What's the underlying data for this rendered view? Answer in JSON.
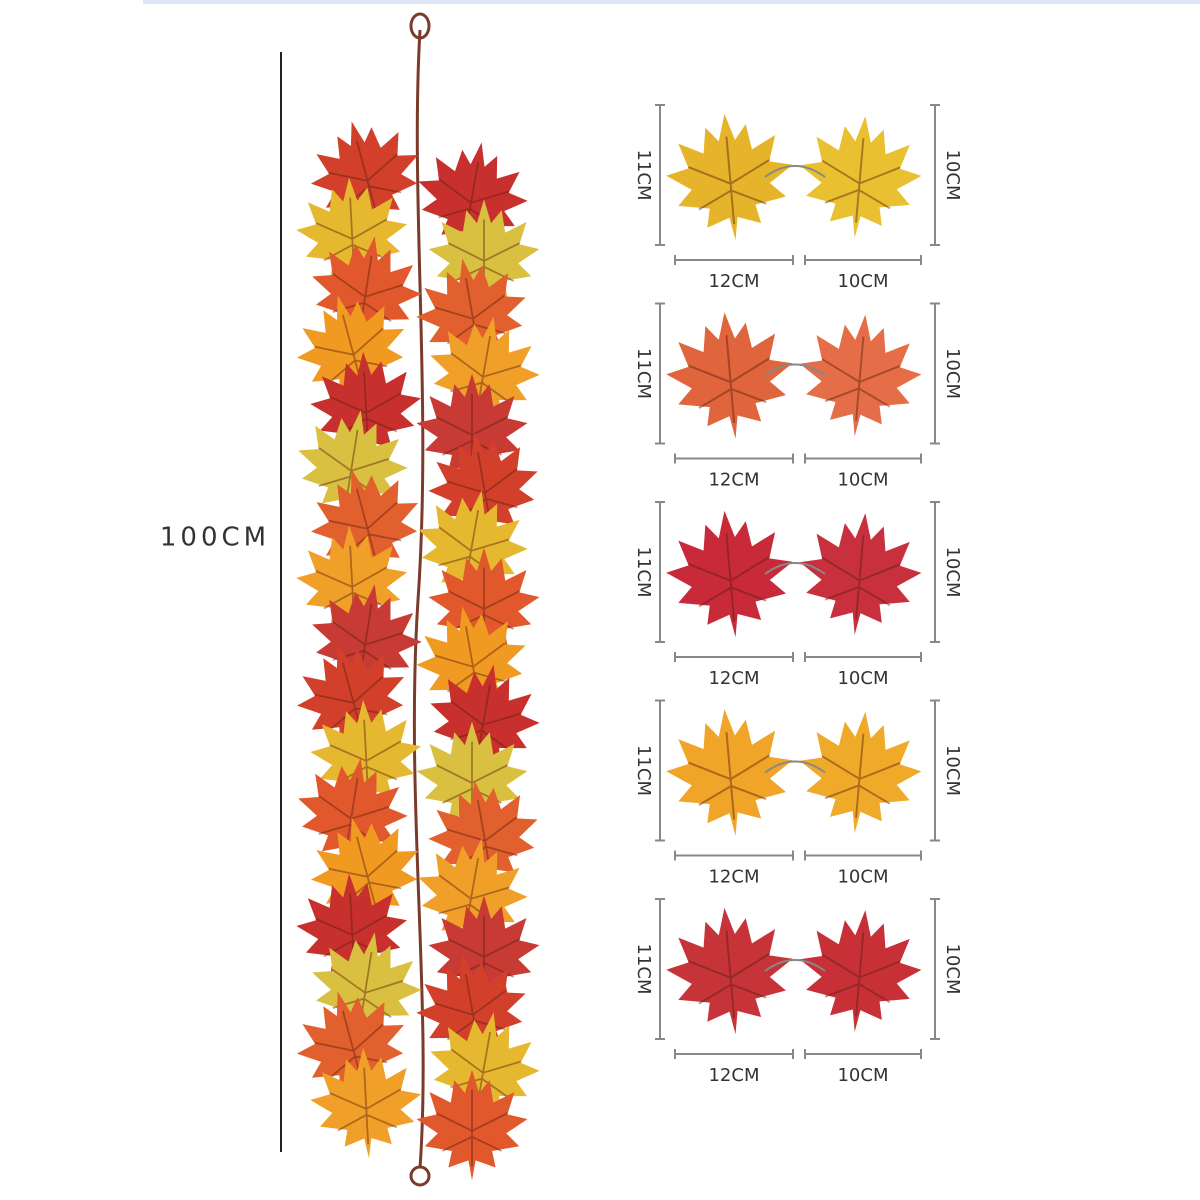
{
  "height_label": "100CM",
  "pairs": [
    {
      "left_height": "11CM",
      "right_height": "10CM",
      "left_width": "12CM",
      "right_width": "10CM"
    },
    {
      "left_height": "11CM",
      "right_height": "10CM",
      "left_width": "12CM",
      "right_width": "10CM"
    },
    {
      "left_height": "11CM",
      "right_height": "10CM",
      "left_width": "12CM",
      "right_width": "10CM"
    },
    {
      "left_height": "11CM",
      "right_height": "10CM",
      "left_width": "12CM",
      "right_width": "10CM"
    },
    {
      "left_height": "11CM",
      "right_height": "10CM",
      "left_width": "12CM",
      "right_width": "10CM"
    }
  ]
}
